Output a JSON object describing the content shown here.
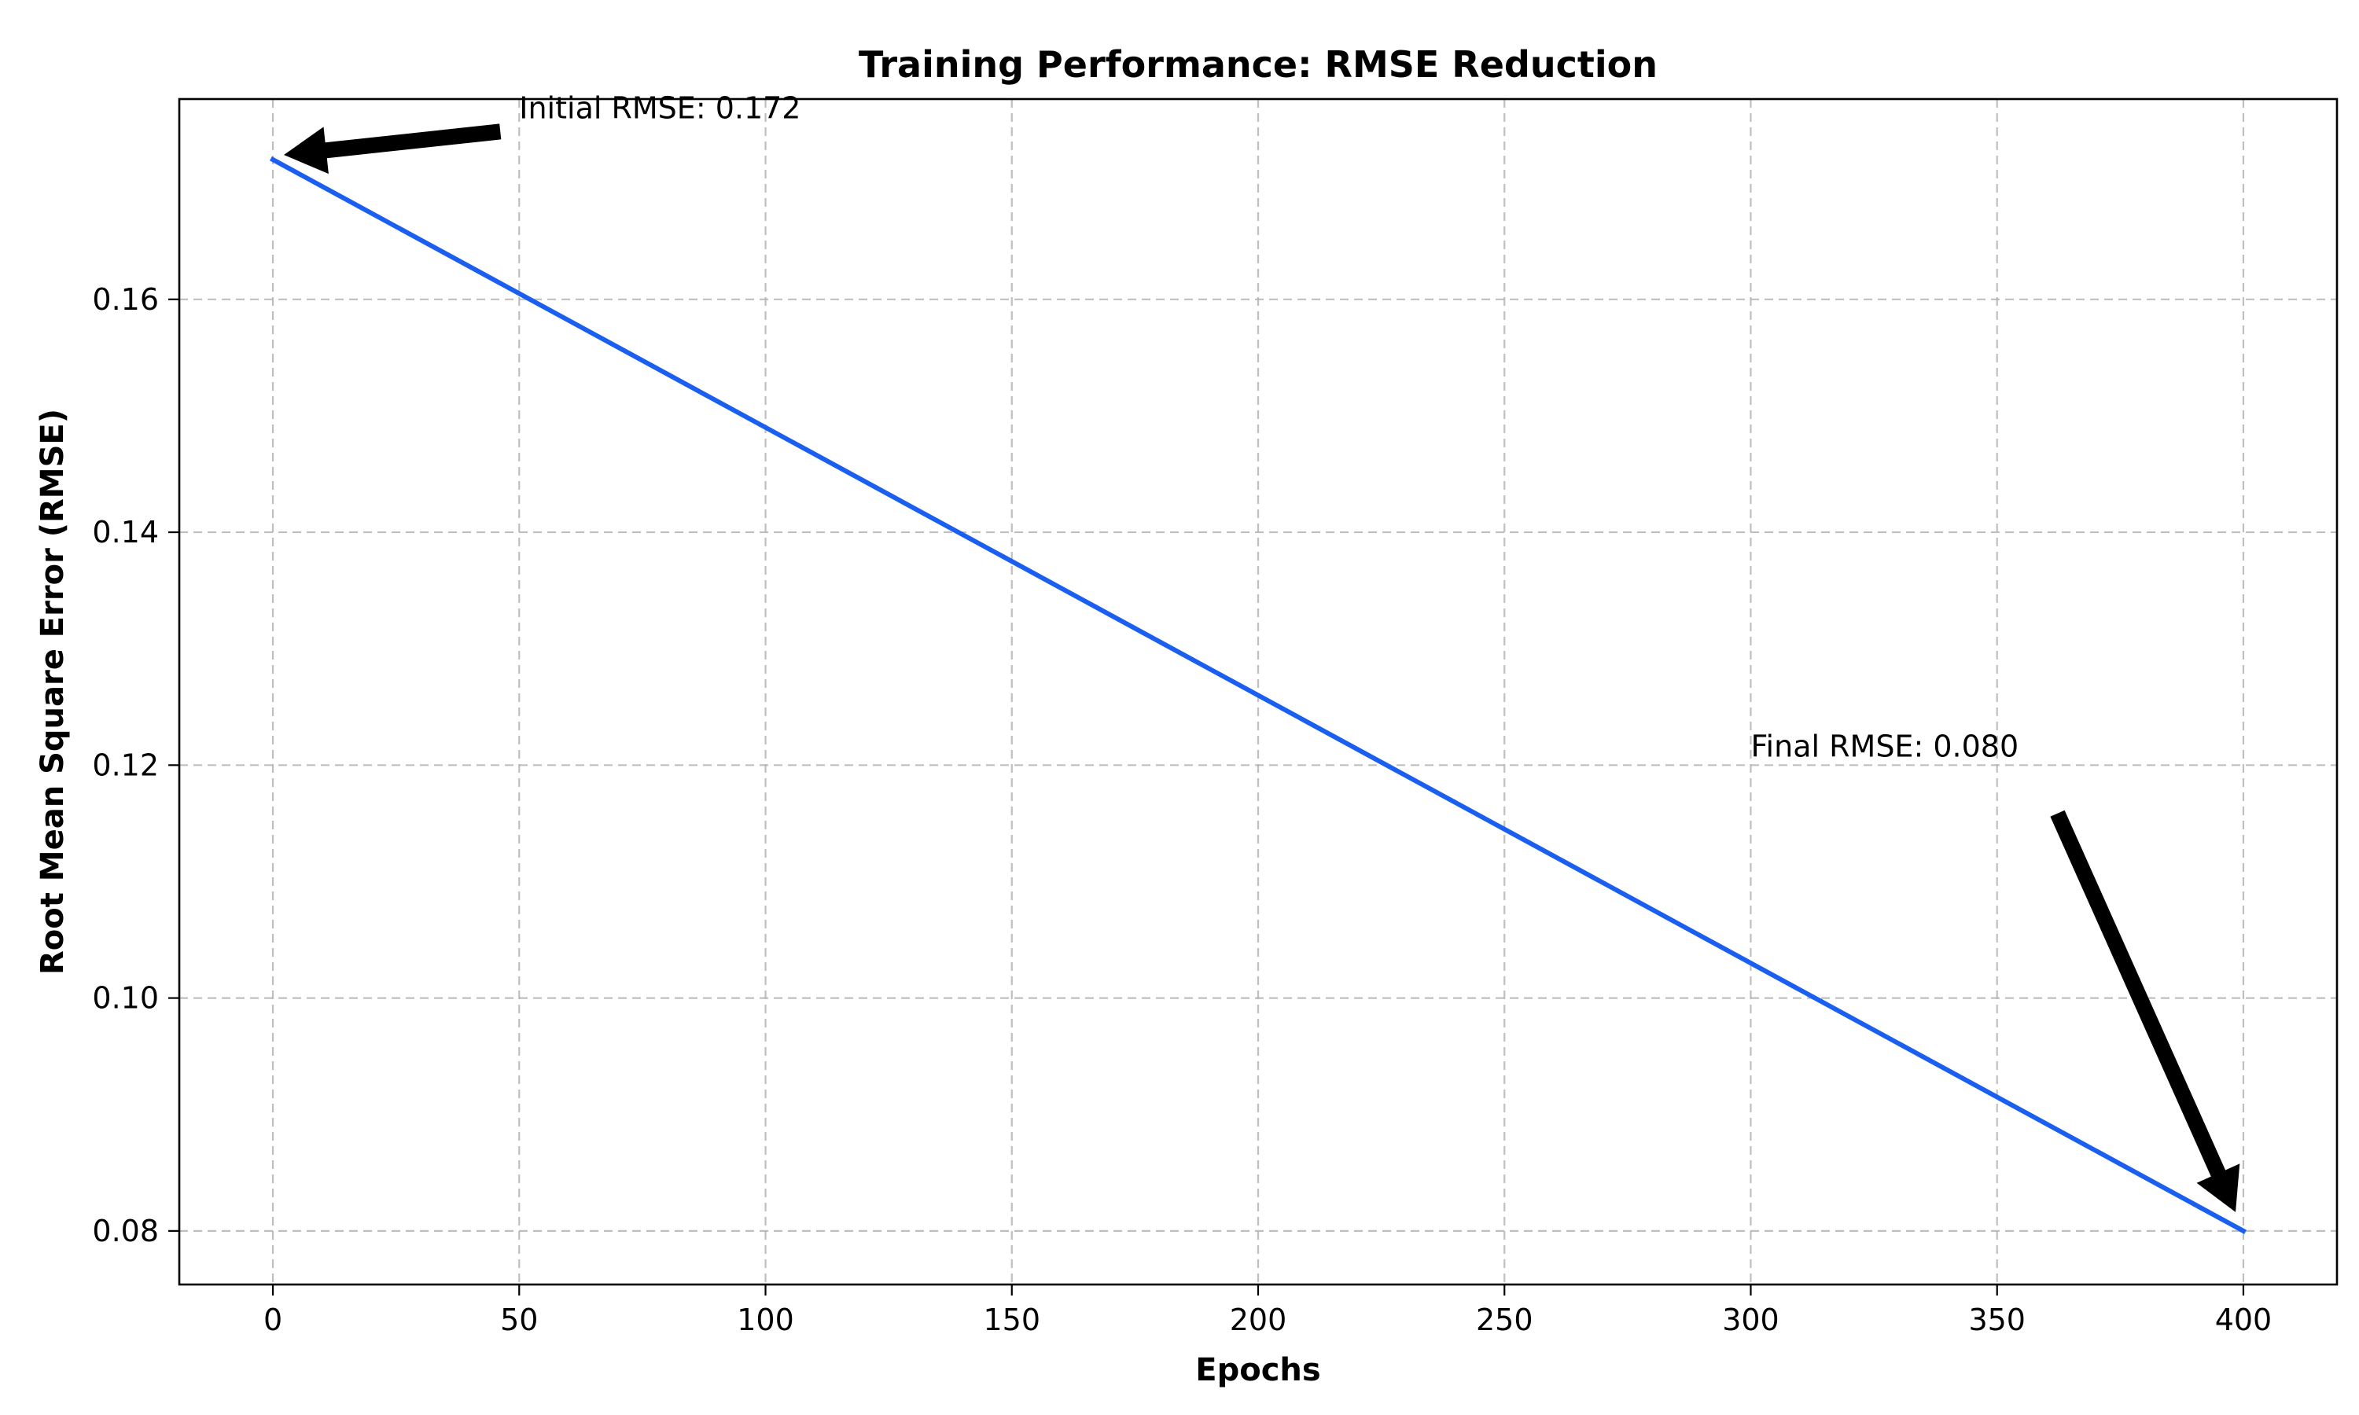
{
  "chart_data": {
    "type": "line",
    "title": "Training Performance: RMSE Reduction",
    "xlabel": "Epochs",
    "ylabel": "Root Mean Square Error (RMSE)",
    "xlim": [
      -19,
      419
    ],
    "ylim": [
      0.0754,
      0.1772
    ],
    "xticks": [
      0,
      50,
      100,
      150,
      200,
      250,
      300,
      350,
      400
    ],
    "xtick_labels": [
      "0",
      "50",
      "100",
      "150",
      "200",
      "250",
      "300",
      "350",
      "400"
    ],
    "yticks": [
      0.08,
      0.1,
      0.12,
      0.14,
      0.16
    ],
    "ytick_labels": [
      "0.08",
      "0.10",
      "0.12",
      "0.14",
      "0.16"
    ],
    "grid": true,
    "line_color": "#1a5ff0",
    "series": [
      {
        "x": [
          0,
          400
        ],
        "y": [
          0.172,
          0.08
        ]
      }
    ],
    "annotations": [
      {
        "text": "Initial RMSE: 0.172",
        "point": [
          0,
          0.172
        ],
        "text_at": [
          50,
          0.1765
        ]
      },
      {
        "text": "Final RMSE: 0.080",
        "point": [
          400,
          0.08
        ],
        "text_at": [
          300,
          0.1195
        ]
      }
    ]
  }
}
